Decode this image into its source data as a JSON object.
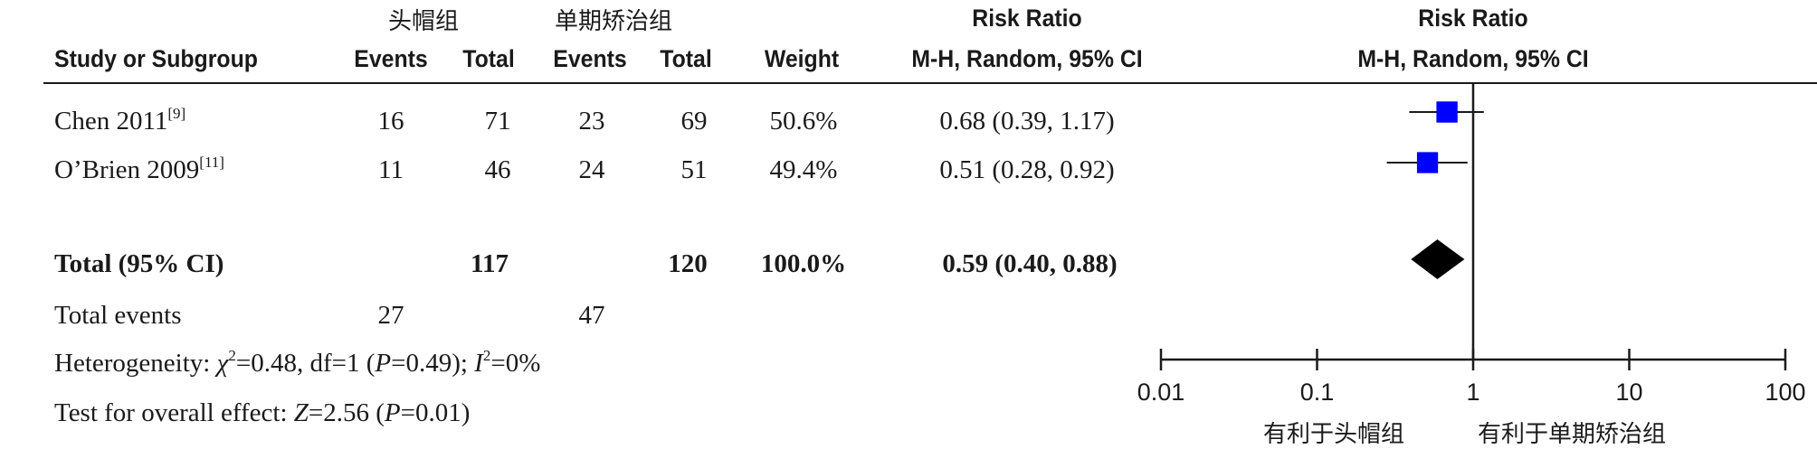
{
  "header": {
    "group1": "头帽组",
    "group2": "单期矫治组",
    "rr_top": "Risk Ratio",
    "rr_top_plot": "Risk Ratio",
    "study": "Study or Subgroup",
    "events1": "Events",
    "total1": "Total",
    "events2": "Events",
    "total2": "Total",
    "weight": "Weight",
    "method": "M-H, Random, 95% CI",
    "method_plot": "M-H, Random, 95% CI"
  },
  "studies": [
    {
      "name": "Chen 2011",
      "ref": "[9]",
      "e1": "16",
      "t1": "71",
      "e2": "23",
      "t2": "69",
      "weight": "50.6%",
      "ci_text": "0.68 (0.39, 1.17)"
    },
    {
      "name": "O’Brien  2009",
      "ref": "[11]",
      "e1": "11",
      "t1": "46",
      "e2": "24",
      "t2": "51",
      "weight": "49.4%",
      "ci_text": "0.51 (0.28, 0.92)"
    }
  ],
  "total": {
    "label": "Total (95% CI)",
    "t1": "117",
    "t2": "120",
    "weight": "100.0%",
    "ci_text": "0.59 (0.40, 0.88)"
  },
  "events_row": {
    "label": "Total events",
    "e1": "27",
    "e2": "47"
  },
  "heterogeneity": {
    "prefix": "Heterogeneity: ",
    "chi": "χ",
    "chi_rest": "=0.48, df=1 (",
    "p": "P",
    "p_rest": "=0.49); ",
    "i": "I",
    "i_rest": "=0%"
  },
  "overall": {
    "prefix": "Test for overall effect: ",
    "z": "Z",
    "z_rest": "=2.56 (",
    "p": "P",
    "p_rest": "=0.01)"
  },
  "axis": {
    "favours_left": "有利于头帽组",
    "favours_right": "有利于单期矫治组"
  },
  "colors": {
    "study_marker": "#0000ff",
    "pooled_marker": "#000000",
    "line": "#1a1a1a"
  },
  "chart_data": {
    "type": "forest",
    "scale": "log",
    "xlim": [
      0.01,
      100
    ],
    "ticks": [
      0.01,
      0.1,
      1,
      10,
      100
    ],
    "tick_labels": [
      "0.01",
      "0.1",
      "1",
      "10",
      "100"
    ],
    "reference_line": 1,
    "studies": [
      {
        "name": "Chen 2011",
        "rr": 0.68,
        "lower": 0.39,
        "upper": 1.17,
        "weight": 50.6
      },
      {
        "name": "O’Brien 2009",
        "rr": 0.51,
        "lower": 0.28,
        "upper": 0.92,
        "weight": 49.4
      }
    ],
    "pooled": {
      "rr": 0.59,
      "lower": 0.4,
      "upper": 0.88
    }
  }
}
